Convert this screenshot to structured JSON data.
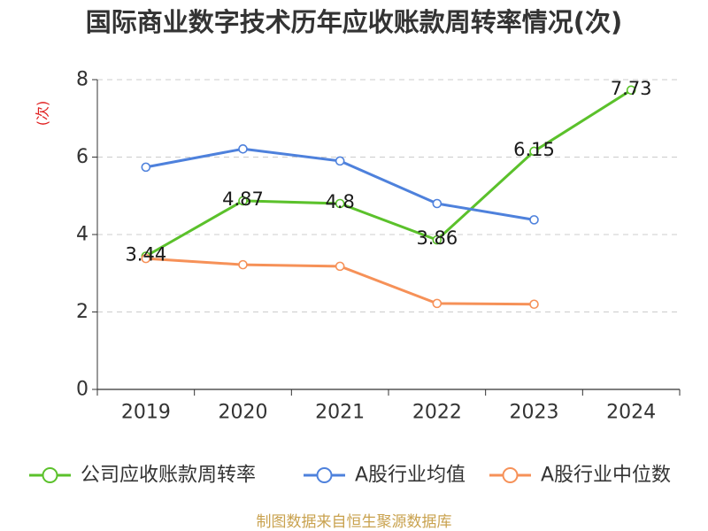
{
  "chart_data": {
    "type": "line",
    "title": "国际商业数字技术历年应收账款周转率情况(次)",
    "xlabel": "",
    "ylabel": "(次)",
    "categories": [
      "2019",
      "2020",
      "2021",
      "2022",
      "2023",
      "2024"
    ],
    "ylim": [
      0,
      8
    ],
    "yticks": [
      0,
      2,
      4,
      6,
      8
    ],
    "grid": true,
    "legend": "bottom",
    "series": [
      {
        "name": "公司应收账款周转率",
        "color": "#5bc12b",
        "values": [
          3.44,
          4.87,
          4.8,
          3.86,
          6.15,
          7.73
        ],
        "data_labels": true
      },
      {
        "name": "A股行业均值",
        "color": "#4e81dc",
        "values": [
          5.74,
          6.21,
          5.9,
          4.8,
          4.38,
          null
        ],
        "data_labels": false
      },
      {
        "name": "A股行业中位数",
        "color": "#f69158",
        "values": [
          3.38,
          3.22,
          3.18,
          2.22,
          2.2,
          null
        ],
        "data_labels": false
      }
    ]
  },
  "footer": {
    "source": "制图数据来自恒生聚源数据库",
    "color": "#c9a24f"
  },
  "colors": {
    "axis": "#333333",
    "grid": "#cccccc",
    "tick": "#333333",
    "data_label": "#1a1a1a",
    "ylabel": "#e02020",
    "legend_text": "#333333"
  }
}
